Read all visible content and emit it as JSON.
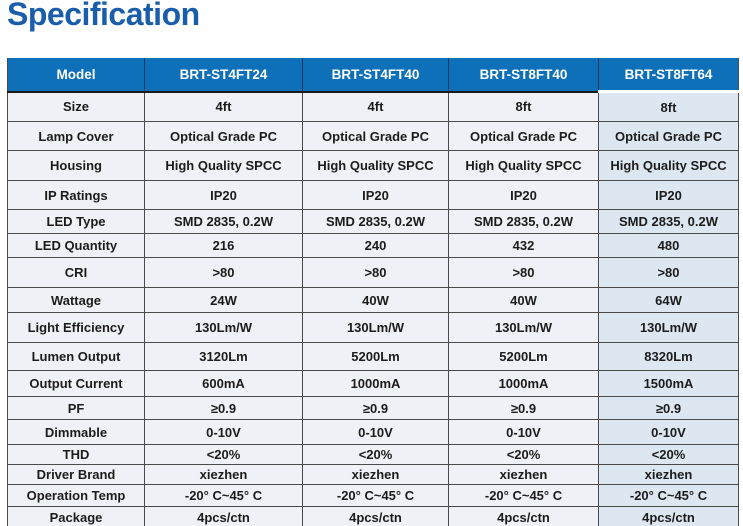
{
  "page_title": "Specification",
  "colors": {
    "title_blue": "#1a5dab",
    "header_blue": "#0e70b8",
    "header_text": "#ffffff",
    "body_cell_bg": "#eef1f5",
    "last_column_bg": "#dde7f1",
    "border_dark": "#4a4a4a"
  },
  "table": {
    "columns": [
      "Model",
      "BRT-ST4FT24",
      "BRT-ST4FT40",
      "BRT-ST8FT40",
      "BRT-ST8FT64"
    ],
    "rows": [
      {
        "label": "Size",
        "values": [
          "4ft",
          "4ft",
          "8ft",
          "8ft"
        ]
      },
      {
        "label": "Lamp Cover",
        "values": [
          "Optical Grade PC",
          "Optical Grade PC",
          "Optical Grade PC",
          "Optical Grade PC"
        ]
      },
      {
        "label": "Housing",
        "values": [
          "High Quality SPCC",
          "High Quality SPCC",
          "High Quality SPCC",
          "High Quality SPCC"
        ]
      },
      {
        "label": "IP Ratings",
        "values": [
          "IP20",
          "IP20",
          "IP20",
          "IP20"
        ]
      },
      {
        "label": "LED Type",
        "values": [
          "SMD 2835, 0.2W",
          "SMD 2835, 0.2W",
          "SMD 2835, 0.2W",
          "SMD 2835, 0.2W"
        ]
      },
      {
        "label": "LED Quantity",
        "values": [
          "216",
          "240",
          "432",
          "480"
        ]
      },
      {
        "label": "CRI",
        "values": [
          ">80",
          ">80",
          ">80",
          ">80"
        ]
      },
      {
        "label": "Wattage",
        "values": [
          "24W",
          "40W",
          "40W",
          "64W"
        ]
      },
      {
        "label": "Light Efficiency",
        "values": [
          "130Lm/W",
          "130Lm/W",
          "130Lm/W",
          "130Lm/W"
        ]
      },
      {
        "label": "Lumen Output",
        "values": [
          "3120Lm",
          "5200Lm",
          "5200Lm",
          "8320Lm"
        ]
      },
      {
        "label": "Output Current",
        "values": [
          "600mA",
          "1000mA",
          "1000mA",
          "1500mA"
        ]
      },
      {
        "label": "PF",
        "values": [
          "≥0.9",
          "≥0.9",
          "≥0.9",
          "≥0.9"
        ]
      },
      {
        "label": "Dimmable",
        "values": [
          "0-10V",
          "0-10V",
          "0-10V",
          "0-10V"
        ]
      },
      {
        "label": "THD",
        "values": [
          "<20%",
          "<20%",
          "<20%",
          "<20%"
        ]
      },
      {
        "label": "Driver Brand",
        "values": [
          "xiezhen",
          "xiezhen",
          "xiezhen",
          "xiezhen"
        ]
      },
      {
        "label": "Operation Temp",
        "values": [
          "-20° C~45° C",
          "-20° C~45° C",
          "-20° C~45° C",
          "-20° C~45° C"
        ]
      },
      {
        "label": "Package",
        "values": [
          "4pcs/ctn",
          "4pcs/ctn",
          "4pcs/ctn",
          "4pcs/ctn"
        ]
      }
    ]
  }
}
